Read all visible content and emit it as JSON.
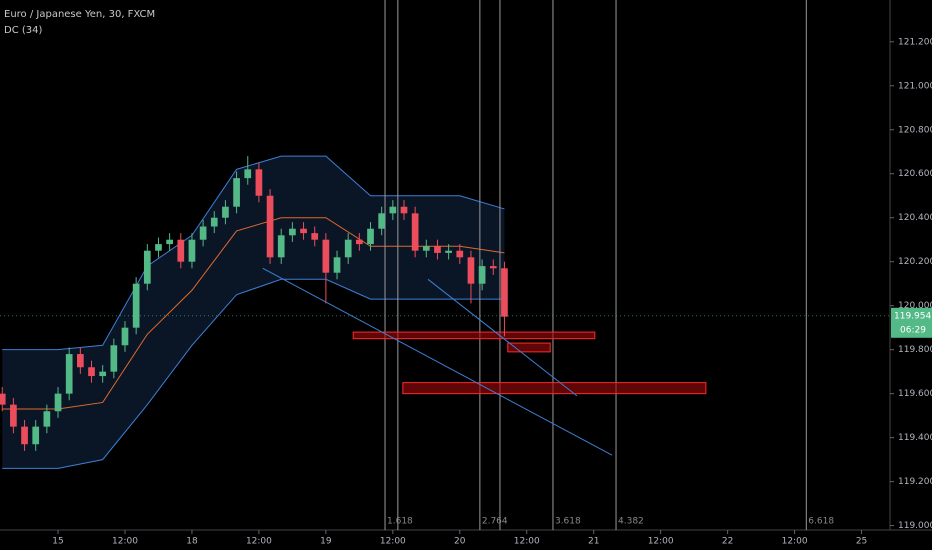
{
  "chart_data": {
    "type": "candlestick",
    "title": "Euro / Japanese Yen, 30, FXCM",
    "indicator": "DC (34)",
    "x": [
      -10,
      -8,
      -6,
      -4,
      -2,
      0,
      2,
      4,
      6,
      8,
      10,
      12,
      14,
      16,
      18,
      20,
      22,
      24,
      26,
      28,
      30,
      32,
      34,
      36,
      38,
      40,
      42,
      44,
      46,
      48,
      50,
      52,
      54,
      56,
      58,
      60,
      62,
      64,
      66,
      68,
      70,
      72,
      74,
      76,
      78,
      80
    ],
    "open": [
      119.6,
      119.55,
      119.45,
      119.37,
      119.45,
      119.52,
      119.6,
      119.78,
      119.72,
      119.68,
      119.7,
      119.82,
      119.9,
      120.1,
      120.25,
      120.28,
      120.3,
      120.2,
      120.3,
      120.36,
      120.4,
      120.45,
      120.58,
      120.62,
      120.5,
      120.22,
      120.32,
      120.35,
      120.33,
      120.3,
      120.15,
      120.22,
      120.3,
      120.28,
      120.35,
      120.42,
      120.45,
      120.42,
      120.25,
      120.27,
      120.24,
      120.25,
      120.22,
      120.1,
      120.18,
      120.17
    ],
    "high": [
      119.63,
      119.58,
      119.48,
      119.48,
      119.55,
      119.63,
      119.81,
      119.81,
      119.75,
      119.73,
      119.85,
      119.93,
      120.13,
      120.28,
      120.31,
      120.33,
      120.33,
      120.33,
      120.39,
      120.43,
      120.48,
      120.61,
      120.68,
      120.65,
      120.53,
      120.35,
      120.38,
      120.38,
      120.36,
      120.33,
      120.25,
      120.33,
      120.33,
      120.38,
      120.45,
      120.48,
      120.48,
      120.45,
      120.3,
      120.3,
      120.28,
      120.28,
      120.25,
      120.21,
      120.21,
      120.2
    ],
    "low": [
      119.52,
      119.42,
      119.34,
      119.34,
      119.42,
      119.49,
      119.57,
      119.69,
      119.65,
      119.65,
      119.67,
      119.79,
      119.87,
      120.07,
      120.22,
      120.25,
      120.17,
      120.17,
      120.27,
      120.33,
      120.37,
      120.42,
      120.55,
      120.47,
      120.19,
      120.19,
      120.29,
      120.3,
      120.27,
      120.01,
      120.12,
      120.19,
      120.25,
      120.25,
      120.32,
      120.39,
      120.39,
      120.22,
      120.22,
      120.21,
      120.21,
      120.19,
      120.01,
      120.07,
      120.14,
      119.86
    ],
    "close": [
      119.55,
      119.45,
      119.37,
      119.45,
      119.52,
      119.6,
      119.78,
      119.72,
      119.68,
      119.7,
      119.82,
      119.9,
      120.1,
      120.25,
      120.28,
      120.3,
      120.2,
      120.3,
      120.36,
      120.4,
      120.45,
      120.58,
      120.62,
      120.5,
      120.22,
      120.32,
      120.35,
      120.33,
      120.3,
      120.15,
      120.22,
      120.3,
      120.28,
      120.35,
      120.42,
      120.45,
      120.42,
      120.25,
      120.27,
      120.24,
      120.25,
      120.22,
      120.1,
      120.18,
      120.17,
      119.95
    ],
    "up_color": "#53b987",
    "down_color": "#eb4d5c",
    "xlim": [
      -10.4,
      149.1
    ],
    "xticks": [
      {
        "value": 0,
        "label": "15"
      },
      {
        "value": 12,
        "label": "12:00"
      },
      {
        "value": 24,
        "label": "18"
      },
      {
        "value": 36,
        "label": "12:00"
      },
      {
        "value": 48,
        "label": "19"
      },
      {
        "value": 60,
        "label": "12:00"
      },
      {
        "value": 72,
        "label": "20"
      },
      {
        "value": 84,
        "label": "12:00"
      },
      {
        "value": 96,
        "label": "21"
      },
      {
        "value": 108,
        "label": "12:00"
      },
      {
        "value": 120,
        "label": "22"
      },
      {
        "value": 132,
        "label": "12:00"
      },
      {
        "value": 144,
        "label": "25"
      }
    ],
    "ylim": [
      118.98,
      121.39
    ],
    "yticks": [
      {
        "value": 119.0,
        "label": "119.000"
      },
      {
        "value": 119.2,
        "label": "119.200"
      },
      {
        "value": 119.4,
        "label": "119.400"
      },
      {
        "value": 119.6,
        "label": "119.600"
      },
      {
        "value": 119.8,
        "label": "119.800"
      },
      {
        "value": 120.0,
        "label": "120.000"
      },
      {
        "value": 120.2,
        "label": "120.200"
      },
      {
        "value": 120.4,
        "label": "120.400"
      },
      {
        "value": 120.6,
        "label": "120.600"
      },
      {
        "value": 120.8,
        "label": "120.800"
      },
      {
        "value": 121.0,
        "label": "121.000"
      },
      {
        "value": 121.2,
        "label": "121.200"
      }
    ],
    "channel": {
      "x": [
        -10,
        0,
        8,
        16,
        24,
        32,
        40,
        48,
        56,
        64,
        72,
        80
      ],
      "upper": [
        119.8,
        119.8,
        119.82,
        120.18,
        120.32,
        120.62,
        120.68,
        120.68,
        120.5,
        120.5,
        120.5,
        120.44
      ],
      "middle": [
        119.53,
        119.53,
        119.56,
        119.87,
        120.07,
        120.34,
        120.4,
        120.4,
        120.27,
        120.27,
        120.27,
        120.24
      ],
      "lower": [
        119.26,
        119.26,
        119.3,
        119.55,
        119.82,
        120.05,
        120.12,
        120.12,
        120.03,
        120.03,
        120.03,
        120.03
      ],
      "color": "#3d7fd6",
      "middle_color": "#e0692f",
      "fill": "#0d1c30"
    },
    "zones": [
      {
        "x": [
          52.9,
          96.2
        ],
        "y": [
          119.85,
          119.88
        ]
      },
      {
        "x": [
          80.6,
          88.2
        ],
        "y": [
          119.79,
          119.83
        ]
      },
      {
        "x": [
          61.8,
          116.1
        ],
        "y": [
          119.6,
          119.65
        ]
      }
    ],
    "zone_color": "#ff2a2a",
    "trendlines": [
      {
        "x": [
          36.7,
          99.3
        ],
        "y": [
          120.17,
          119.32
        ]
      },
      {
        "x": [
          66.3,
          93.0
        ],
        "y": [
          120.12,
          119.59
        ]
      }
    ],
    "trendline_color": "#3d7fd6",
    "fib_lines": [
      {
        "x": 58.6,
        "label": "1.618"
      },
      {
        "x": 60.9,
        "label": null
      },
      {
        "x": 75.6,
        "label": "2.764"
      },
      {
        "x": 79.2,
        "label": null
      },
      {
        "x": 88.7,
        "label": "3.618"
      },
      {
        "x": 100.0,
        "label": "4.382"
      },
      {
        "x": 134.1,
        "label": "6.618"
      }
    ],
    "last_price": 119.954,
    "countdown": "06:29"
  }
}
